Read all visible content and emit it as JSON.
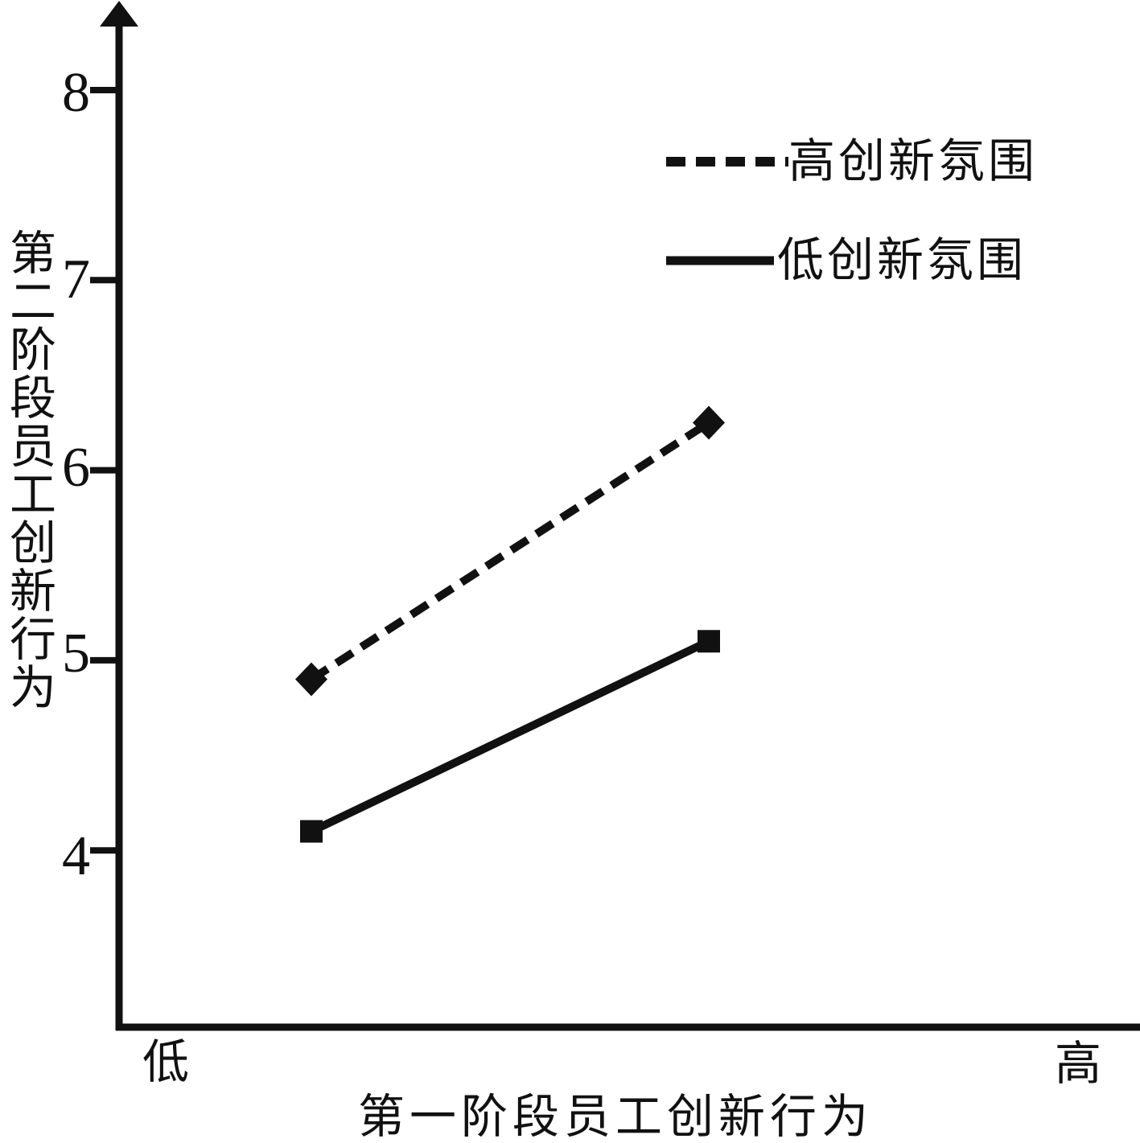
{
  "chart_data": {
    "type": "line",
    "categories": [
      "低",
      "高"
    ],
    "series": [
      {
        "name": "高创新氛围",
        "line_style": "dashed",
        "marker": "diamond",
        "values": [
          4.9,
          6.25
        ]
      },
      {
        "name": "低创新氛围",
        "line_style": "solid",
        "marker": "square",
        "values": [
          4.1,
          5.1
        ]
      }
    ],
    "xlabel": "第一阶段员工创新行为",
    "ylabel": "第二阶段员工创新行为",
    "yticks": [
      4,
      5,
      6,
      7,
      8
    ],
    "ylim": [
      3.2,
      8.4
    ],
    "x_end_labels": {
      "left": "低",
      "right": "高"
    },
    "legend_position": "top-right",
    "grid": false,
    "line_color": "#111111",
    "background": "#ffffff"
  }
}
